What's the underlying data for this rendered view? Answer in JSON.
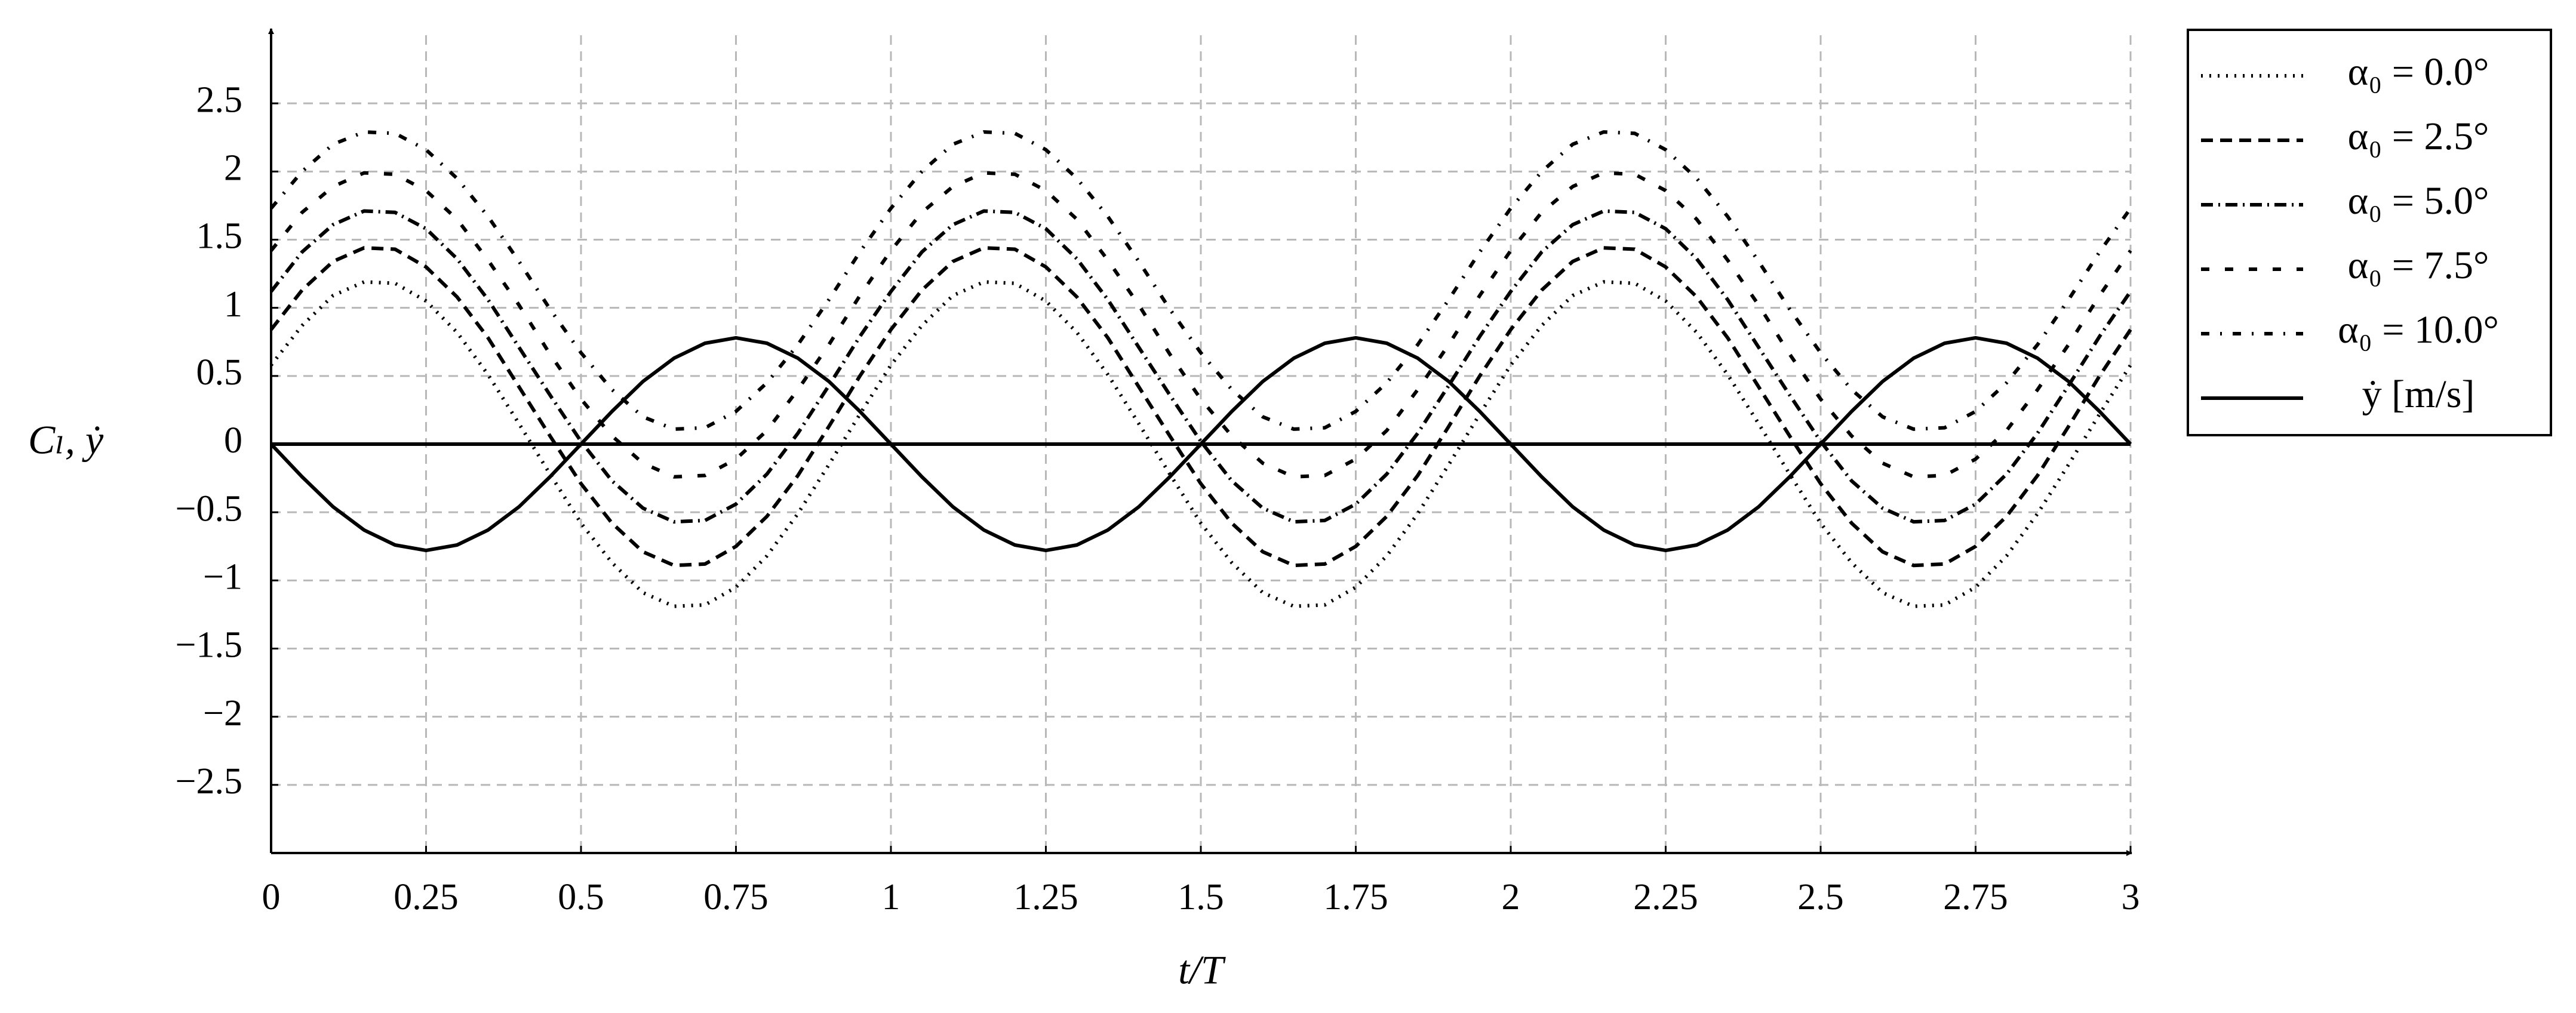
{
  "chart_data": {
    "type": "line",
    "x_label": "t/T",
    "y_label": "Cₗ, ẏ",
    "x": [
      0,
      0.05,
      0.1,
      0.15,
      0.2,
      0.25,
      0.3,
      0.35,
      0.4,
      0.45,
      0.5,
      0.55,
      0.6,
      0.65,
      0.7,
      0.75,
      0.8,
      0.85,
      0.9,
      0.95,
      1,
      1.05,
      1.1,
      1.15,
      1.2,
      1.25,
      1.3,
      1.35,
      1.4,
      1.45,
      1.5,
      1.55,
      1.6,
      1.65,
      1.7,
      1.75,
      1.8,
      1.85,
      1.9,
      1.95,
      2,
      2.05,
      2.1,
      2.15,
      2.2,
      2.25,
      2.3,
      2.35,
      2.4,
      2.45,
      2.5,
      2.55,
      2.6,
      2.65,
      2.7,
      2.75,
      2.8,
      2.85,
      2.9,
      2.95,
      3
    ],
    "series": [
      {
        "name": "α₀ = 0.0°",
        "color": "#000000",
        "dash": "dotted",
        "values": [
          0.58,
          0.87,
          1.09,
          1.19,
          1.18,
          1.05,
          0.82,
          0.51,
          0.15,
          -0.22,
          -0.58,
          -0.87,
          -1.09,
          -1.19,
          -1.18,
          -1.05,
          -0.82,
          -0.51,
          -0.15,
          0.22,
          0.58,
          0.87,
          1.09,
          1.19,
          1.18,
          1.05,
          0.82,
          0.51,
          0.15,
          -0.22,
          -0.58,
          -0.87,
          -1.09,
          -1.19,
          -1.18,
          -1.05,
          -0.82,
          -0.51,
          -0.15,
          0.22,
          0.58,
          0.87,
          1.09,
          1.19,
          1.18,
          1.05,
          0.82,
          0.51,
          0.15,
          -0.22,
          -0.58,
          -0.87,
          -1.09,
          -1.19,
          -1.18,
          -1.05,
          -0.82,
          -0.51,
          -0.15,
          0.22,
          0.58
        ]
      },
      {
        "name": "α₀ = 2.5°",
        "color": "#000000",
        "dash": "dashed",
        "values": [
          0.84,
          1.13,
          1.34,
          1.44,
          1.43,
          1.3,
          1.08,
          0.78,
          0.42,
          0.06,
          -0.29,
          -0.58,
          -0.79,
          -0.89,
          -0.88,
          -0.75,
          -0.53,
          -0.23,
          0.13,
          0.5,
          0.84,
          1.13,
          1.34,
          1.44,
          1.43,
          1.3,
          1.08,
          0.78,
          0.42,
          0.06,
          -0.29,
          -0.58,
          -0.79,
          -0.89,
          -0.88,
          -0.75,
          -0.53,
          -0.23,
          0.13,
          0.5,
          0.84,
          1.13,
          1.34,
          1.44,
          1.43,
          1.3,
          1.08,
          0.78,
          0.42,
          0.06,
          -0.29,
          -0.58,
          -0.79,
          -0.89,
          -0.88,
          -0.75,
          -0.53,
          -0.23,
          0.13,
          0.5,
          0.84
        ]
      },
      {
        "name": "α₀ = 5.0°",
        "color": "#000000",
        "dash": "dashdot",
        "values": [
          1.12,
          1.41,
          1.61,
          1.71,
          1.7,
          1.58,
          1.36,
          1.06,
          0.71,
          0.36,
          0.02,
          -0.27,
          -0.47,
          -0.57,
          -0.56,
          -0.44,
          -0.22,
          0.08,
          0.43,
          0.79,
          1.12,
          1.41,
          1.61,
          1.71,
          1.7,
          1.58,
          1.36,
          1.06,
          0.71,
          0.36,
          0.02,
          -0.27,
          -0.47,
          -0.57,
          -0.56,
          -0.44,
          -0.22,
          0.08,
          0.43,
          0.79,
          1.12,
          1.41,
          1.61,
          1.71,
          1.7,
          1.58,
          1.36,
          1.06,
          0.71,
          0.36,
          0.02,
          -0.27,
          -0.47,
          -0.57,
          -0.56,
          -0.44,
          -0.22,
          0.08,
          0.43,
          0.79,
          1.12
        ]
      },
      {
        "name": "α₀ = 7.5°",
        "color": "#000000",
        "dash": "loosely dashed",
        "values": [
          1.42,
          1.7,
          1.89,
          1.99,
          1.98,
          1.86,
          1.65,
          1.35,
          1.02,
          0.66,
          0.33,
          0.06,
          -0.14,
          -0.24,
          -0.23,
          -0.11,
          0.1,
          0.4,
          0.73,
          1.09,
          1.42,
          1.7,
          1.89,
          1.99,
          1.98,
          1.86,
          1.65,
          1.35,
          1.02,
          0.66,
          0.33,
          0.06,
          -0.14,
          -0.24,
          -0.23,
          -0.11,
          0.1,
          0.4,
          0.73,
          1.09,
          1.42,
          1.7,
          1.89,
          1.99,
          1.98,
          1.86,
          1.65,
          1.35,
          1.02,
          0.66,
          0.33,
          0.06,
          -0.14,
          -0.24,
          -0.23,
          -0.11,
          0.1,
          0.4,
          0.73,
          1.09,
          1.42
        ]
      },
      {
        "name": "α₀ = 10.0°",
        "color": "#000000",
        "dash": "loosely dashdot",
        "values": [
          1.73,
          2.0,
          2.2,
          2.29,
          2.28,
          2.16,
          1.95,
          1.67,
          1.34,
          0.99,
          0.67,
          0.4,
          0.2,
          0.11,
          0.12,
          0.24,
          0.45,
          0.73,
          1.06,
          1.41,
          1.73,
          2.0,
          2.2,
          2.29,
          2.28,
          2.16,
          1.95,
          1.67,
          1.34,
          0.99,
          0.67,
          0.4,
          0.2,
          0.11,
          0.12,
          0.24,
          0.45,
          0.73,
          1.06,
          1.41,
          1.73,
          2.0,
          2.2,
          2.29,
          2.28,
          2.16,
          1.95,
          1.67,
          1.34,
          0.99,
          0.67,
          0.4,
          0.2,
          0.11,
          0.12,
          0.24,
          0.45,
          0.73,
          1.06,
          1.41,
          1.73
        ]
      },
      {
        "name": "ẏ [m/s]",
        "color": "#000000",
        "dash": "solid",
        "values": [
          0,
          -0.24,
          -0.46,
          -0.63,
          -0.74,
          -0.78,
          -0.74,
          -0.63,
          -0.46,
          -0.24,
          0,
          0.24,
          0.46,
          0.63,
          0.74,
          0.78,
          0.74,
          0.63,
          0.46,
          0.24,
          0,
          -0.24,
          -0.46,
          -0.63,
          -0.74,
          -0.78,
          -0.74,
          -0.63,
          -0.46,
          -0.24,
          0,
          0.24,
          0.46,
          0.63,
          0.74,
          0.78,
          0.74,
          0.63,
          0.46,
          0.24,
          0,
          -0.24,
          -0.46,
          -0.63,
          -0.74,
          -0.78,
          -0.74,
          -0.63,
          -0.46,
          -0.24,
          0,
          0.24,
          0.46,
          0.63,
          0.74,
          0.78,
          0.74,
          0.63,
          0.46,
          0.24,
          0
        ]
      }
    ],
    "xlim": [
      0,
      3
    ],
    "ylim": [
      -3,
      3
    ],
    "xticks": [
      0,
      0.25,
      0.5,
      0.75,
      1,
      1.25,
      1.5,
      1.75,
      2,
      2.25,
      2.5,
      2.75,
      3
    ],
    "yticks": [
      {
        "value": -2.5,
        "label": "−2.5"
      },
      {
        "value": -2,
        "label": "−2"
      },
      {
        "value": -1.5,
        "label": "−1.5"
      },
      {
        "value": -1,
        "label": "−1"
      },
      {
        "value": -0.5,
        "label": "−0.5"
      },
      0,
      0.5,
      1,
      1.5,
      2,
      2.5
    ],
    "grid": true,
    "legend": "outside right"
  }
}
